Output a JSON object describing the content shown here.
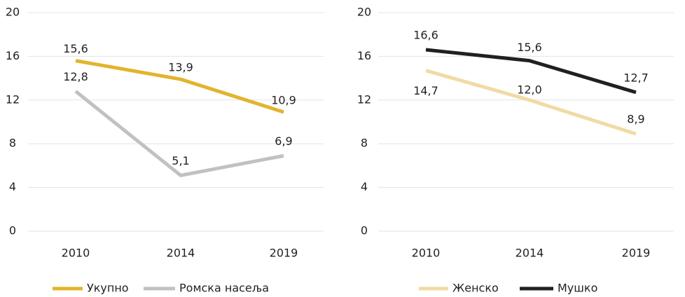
{
  "chart_data": [
    {
      "type": "line",
      "categories": [
        "2010",
        "2014",
        "2019"
      ],
      "series": [
        {
          "name": "Укупно",
          "color": "#e2b42e",
          "values": [
            15.6,
            13.9,
            10.9
          ],
          "value_labels": [
            "15,6",
            "13,9",
            "10,9"
          ]
        },
        {
          "name": "Ромска насеља",
          "color": "#c1c1c3",
          "values": [
            12.8,
            5.1,
            6.9
          ],
          "value_labels": [
            "12,8",
            "5,1",
            "6,9"
          ]
        }
      ],
      "ylim": [
        0,
        20
      ],
      "yticks": [
        0,
        4,
        8,
        12,
        16,
        20
      ],
      "grid": true,
      "legend": "bottom"
    },
    {
      "type": "line",
      "categories": [
        "2010",
        "2014",
        "2019"
      ],
      "series": [
        {
          "name": "Женско",
          "color": "#f1dba4",
          "values": [
            14.7,
            12.0,
            8.9
          ],
          "value_labels": [
            "14,7",
            "12,0",
            "8,9"
          ]
        },
        {
          "name": "Мушко",
          "color": "#231f20",
          "values": [
            16.6,
            15.6,
            12.7
          ],
          "value_labels": [
            "16,6",
            "15,6",
            "12,7"
          ]
        }
      ],
      "ylim": [
        0,
        20
      ],
      "yticks": [
        0,
        4,
        8,
        12,
        16,
        20
      ],
      "grid": true,
      "legend": "bottom"
    }
  ]
}
